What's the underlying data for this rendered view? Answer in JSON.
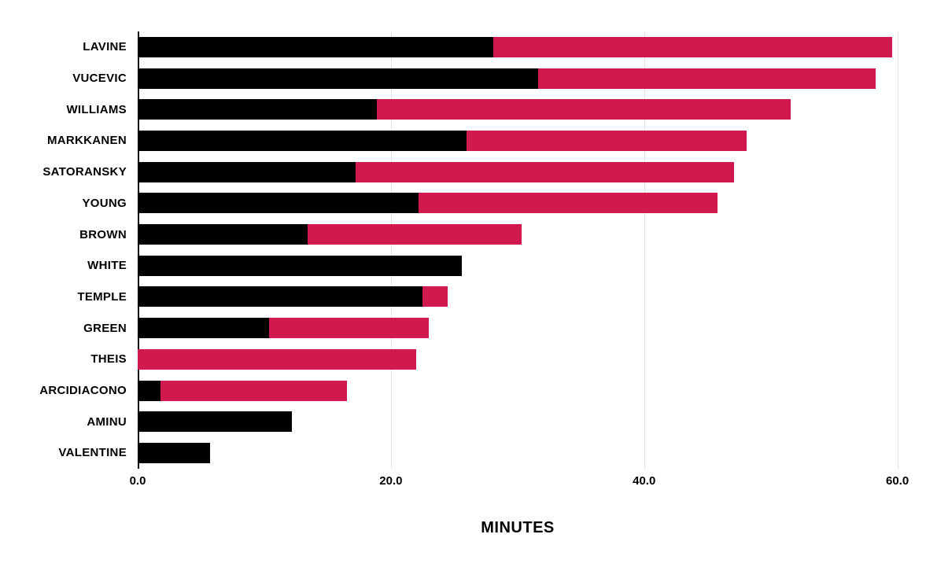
{
  "chart_data": {
    "type": "bar",
    "orientation": "horizontal",
    "stacked": true,
    "title": "",
    "xlabel": "MINUTES",
    "ylabel": "",
    "xlim": [
      0,
      62.2
    ],
    "grid": true,
    "legend": false,
    "categories": [
      "LAVINE",
      "VUCEVIC",
      "WILLIAMS",
      "MARKKANEN",
      "SATORANSKY",
      "YOUNG",
      "BROWN",
      "WHITE",
      "TEMPLE",
      "GREEN",
      "THEIS",
      "ARCIDIACONO",
      "AMINU",
      "VALENTINE"
    ],
    "series": [
      {
        "name": "black",
        "color": "#000000",
        "values": [
          28.1,
          31.6,
          18.9,
          26.0,
          17.2,
          22.2,
          13.4,
          25.6,
          22.5,
          10.4,
          0,
          1.8,
          12.2,
          5.7
        ]
      },
      {
        "name": "crimson",
        "color": "#d01a4f",
        "values": [
          31.5,
          26.7,
          32.7,
          22.1,
          29.9,
          23.6,
          16.9,
          0,
          2.0,
          12.6,
          22.0,
          14.7,
          0,
          0
        ]
      }
    ],
    "totals": [
      59.6,
      58.3,
      51.6,
      48.1,
      47.1,
      45.8,
      30.3,
      25.6,
      24.5,
      23.0,
      22.0,
      16.5,
      12.2,
      5.7
    ],
    "x_ticks": [
      {
        "label": "0.0",
        "value": 0
      },
      {
        "label": "20.0",
        "value": 20
      },
      {
        "label": "40.0",
        "value": 40
      },
      {
        "label": "60.0",
        "value": 60
      }
    ]
  }
}
